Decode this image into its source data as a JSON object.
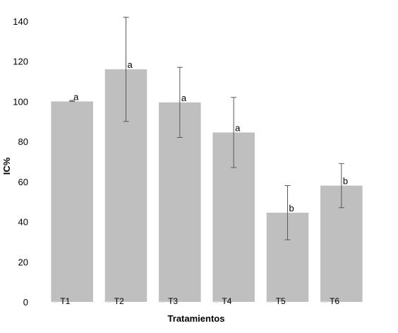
{
  "chart_data": {
    "type": "bar",
    "title": "",
    "xlabel": "Tratamientos",
    "ylabel": "IC%",
    "ylim": [
      0,
      140
    ],
    "yticks": [
      0,
      20,
      40,
      60,
      80,
      100,
      120,
      140
    ],
    "grid": false,
    "categories": [
      "T1",
      "T2",
      "T3",
      "T4",
      "T5",
      "T6"
    ],
    "values": [
      100,
      116,
      99.5,
      84.5,
      44.5,
      58
    ],
    "error_low": [
      100,
      90,
      82,
      67,
      31,
      47
    ],
    "error_high": [
      100.5,
      142,
      117,
      102,
      58,
      69
    ],
    "significance": [
      "a",
      "a",
      "a",
      "a",
      "b",
      "b"
    ],
    "bar_color": "#bfbfbf",
    "error_color": "#595959"
  }
}
